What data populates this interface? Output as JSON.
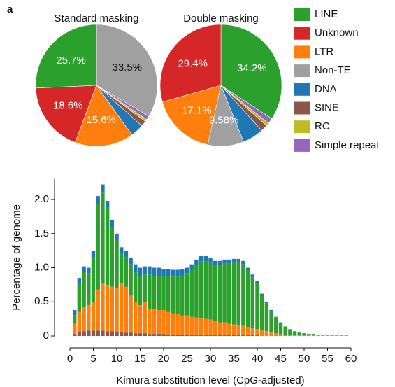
{
  "panel_label": "a",
  "legend": {
    "names": [
      "LINE",
      "Unknown",
      "LTR",
      "Non-TE",
      "DNA",
      "SINE",
      "RC",
      "Simple repeat"
    ],
    "colors": [
      "#2ca02c",
      "#d62728",
      "#ff7f0e",
      "#a0a0a0",
      "#1f77b4",
      "#8c564b",
      "#bcbd22",
      "#9467bd"
    ]
  },
  "chart_data": [
    {
      "type": "pie",
      "title": "Standard masking",
      "categories": [
        "Non-TE",
        "Simple repeat",
        "RC",
        "SINE",
        "DNA",
        "LTR",
        "Unknown",
        "LINE"
      ],
      "values": [
        33.5,
        1.0,
        0.6,
        1.5,
        3.5,
        15.6,
        18.6,
        25.7
      ],
      "value_labels": [
        "33.5%",
        null,
        null,
        null,
        null,
        "15.6%",
        "18.6%",
        "25.7%"
      ],
      "value_label_colors": [
        "#111111",
        null,
        null,
        null,
        null,
        "#ffffff",
        "#ffffff",
        "#ffffff"
      ]
    },
    {
      "type": "pie",
      "title": "Double masking",
      "categories": [
        "LINE",
        "Simple repeat",
        "RC",
        "SINE",
        "DNA",
        "Non-TE",
        "LTR",
        "Unknown"
      ],
      "values": [
        34.2,
        1.5,
        0.8,
        1.8,
        5.6,
        9.58,
        17.1,
        29.4
      ],
      "value_labels": [
        "34.2%",
        null,
        null,
        null,
        null,
        "9.58%",
        "17.1%",
        "29.4%"
      ],
      "value_label_colors": [
        "#ffffff",
        null,
        null,
        null,
        null,
        "#ffffff",
        "#ffffff",
        "#ffffff"
      ]
    },
    {
      "type": "bar",
      "x_label": "Kimura substitution level (CpG-adjusted)",
      "y_label": "Percentage of genome",
      "x": [
        1,
        2,
        3,
        4,
        5,
        6,
        7,
        8,
        9,
        10,
        11,
        12,
        13,
        14,
        15,
        16,
        17,
        18,
        19,
        20,
        21,
        22,
        23,
        24,
        25,
        26,
        27,
        28,
        29,
        30,
        31,
        32,
        33,
        34,
        35,
        36,
        37,
        38,
        39,
        40,
        41,
        42,
        43,
        44,
        45,
        46,
        47,
        48,
        49,
        50,
        51,
        52,
        53,
        54,
        55,
        56,
        57,
        58,
        59
      ],
      "series": [
        {
          "name": "SINE",
          "values": [
            0.03,
            0.06,
            0.07,
            0.08,
            0.08,
            0.08,
            0.08,
            0.07,
            0.07,
            0.06,
            0.06,
            0.05,
            0.05,
            0.04,
            0.04,
            0.04,
            0.03,
            0.03,
            0.03,
            0.03,
            0.02,
            0.02,
            0.02,
            0.02,
            0.02,
            0.01,
            0.01,
            0.01,
            0.01,
            0.01,
            0.01,
            0.01,
            0.01,
            0.01,
            0.01,
            0.01,
            0.01,
            0.01,
            0.01,
            0.01,
            0,
            0,
            0,
            0,
            0,
            0,
            0,
            0,
            0,
            0,
            0,
            0,
            0,
            0,
            0,
            0,
            0,
            0,
            0
          ]
        },
        {
          "name": "LTR",
          "values": [
            0.15,
            0.29,
            0.35,
            0.37,
            0.42,
            0.6,
            0.7,
            0.68,
            0.65,
            0.64,
            0.72,
            0.67,
            0.55,
            0.46,
            0.41,
            0.46,
            0.37,
            0.37,
            0.35,
            0.35,
            0.33,
            0.31,
            0.3,
            0.28,
            0.28,
            0.27,
            0.26,
            0.25,
            0.24,
            0.23,
            0.21,
            0.19,
            0.19,
            0.17,
            0.16,
            0.15,
            0.14,
            0.12,
            0.1,
            0.09,
            0.08,
            0.07,
            0.05,
            0.04,
            0.03,
            0.02,
            0.02,
            0.01,
            0.01,
            0.01,
            0.01,
            0.01,
            0.01,
            0.01,
            0.01,
            0.01,
            0.01,
            0.01,
            0.01
          ]
        },
        {
          "name": "LINE",
          "values": [
            0.12,
            0.42,
            0.52,
            0.47,
            0.65,
            1.25,
            1.32,
            1.13,
            0.88,
            0.7,
            0.44,
            0.43,
            0.45,
            0.43,
            0.43,
            0.4,
            0.5,
            0.48,
            0.5,
            0.5,
            0.53,
            0.54,
            0.55,
            0.58,
            0.62,
            0.69,
            0.77,
            0.83,
            0.84,
            0.83,
            0.82,
            0.84,
            0.86,
            0.88,
            0.9,
            0.92,
            0.9,
            0.83,
            0.75,
            0.67,
            0.51,
            0.41,
            0.31,
            0.23,
            0.16,
            0.12,
            0.08,
            0.06,
            0.04,
            0.03,
            0.02,
            0.02,
            0.01,
            0.01,
            0.01,
            0.01,
            0,
            0,
            0
          ]
        },
        {
          "name": "DNA",
          "values": [
            0.08,
            0.08,
            0.08,
            0.08,
            0.1,
            0.12,
            0.12,
            0.1,
            0.1,
            0.1,
            0.08,
            0.1,
            0.1,
            0.12,
            0.12,
            0.12,
            0.12,
            0.12,
            0.12,
            0.1,
            0.1,
            0.1,
            0.1,
            0.1,
            0.08,
            0.08,
            0.08,
            0.08,
            0.08,
            0.08,
            0.06,
            0.06,
            0.06,
            0.06,
            0.06,
            0.05,
            0.05,
            0.04,
            0.04,
            0.03,
            0.03,
            0.02,
            0.02,
            0.01,
            0.01,
            0,
            0,
            0,
            0,
            0,
            0,
            0,
            0,
            0,
            0,
            0,
            0,
            0,
            0
          ]
        }
      ],
      "xlim": [
        -1,
        61
      ],
      "ylim": [
        -0.05,
        2.3
      ],
      "xticks": [
        0,
        5,
        10,
        15,
        20,
        25,
        30,
        35,
        40,
        45,
        50,
        55,
        60
      ],
      "yticks": [
        0,
        0.5,
        {
          "value": 1,
          "label": "1.0"
        },
        1.5,
        {
          "value": 2,
          "label": "2.0"
        }
      ]
    }
  ]
}
